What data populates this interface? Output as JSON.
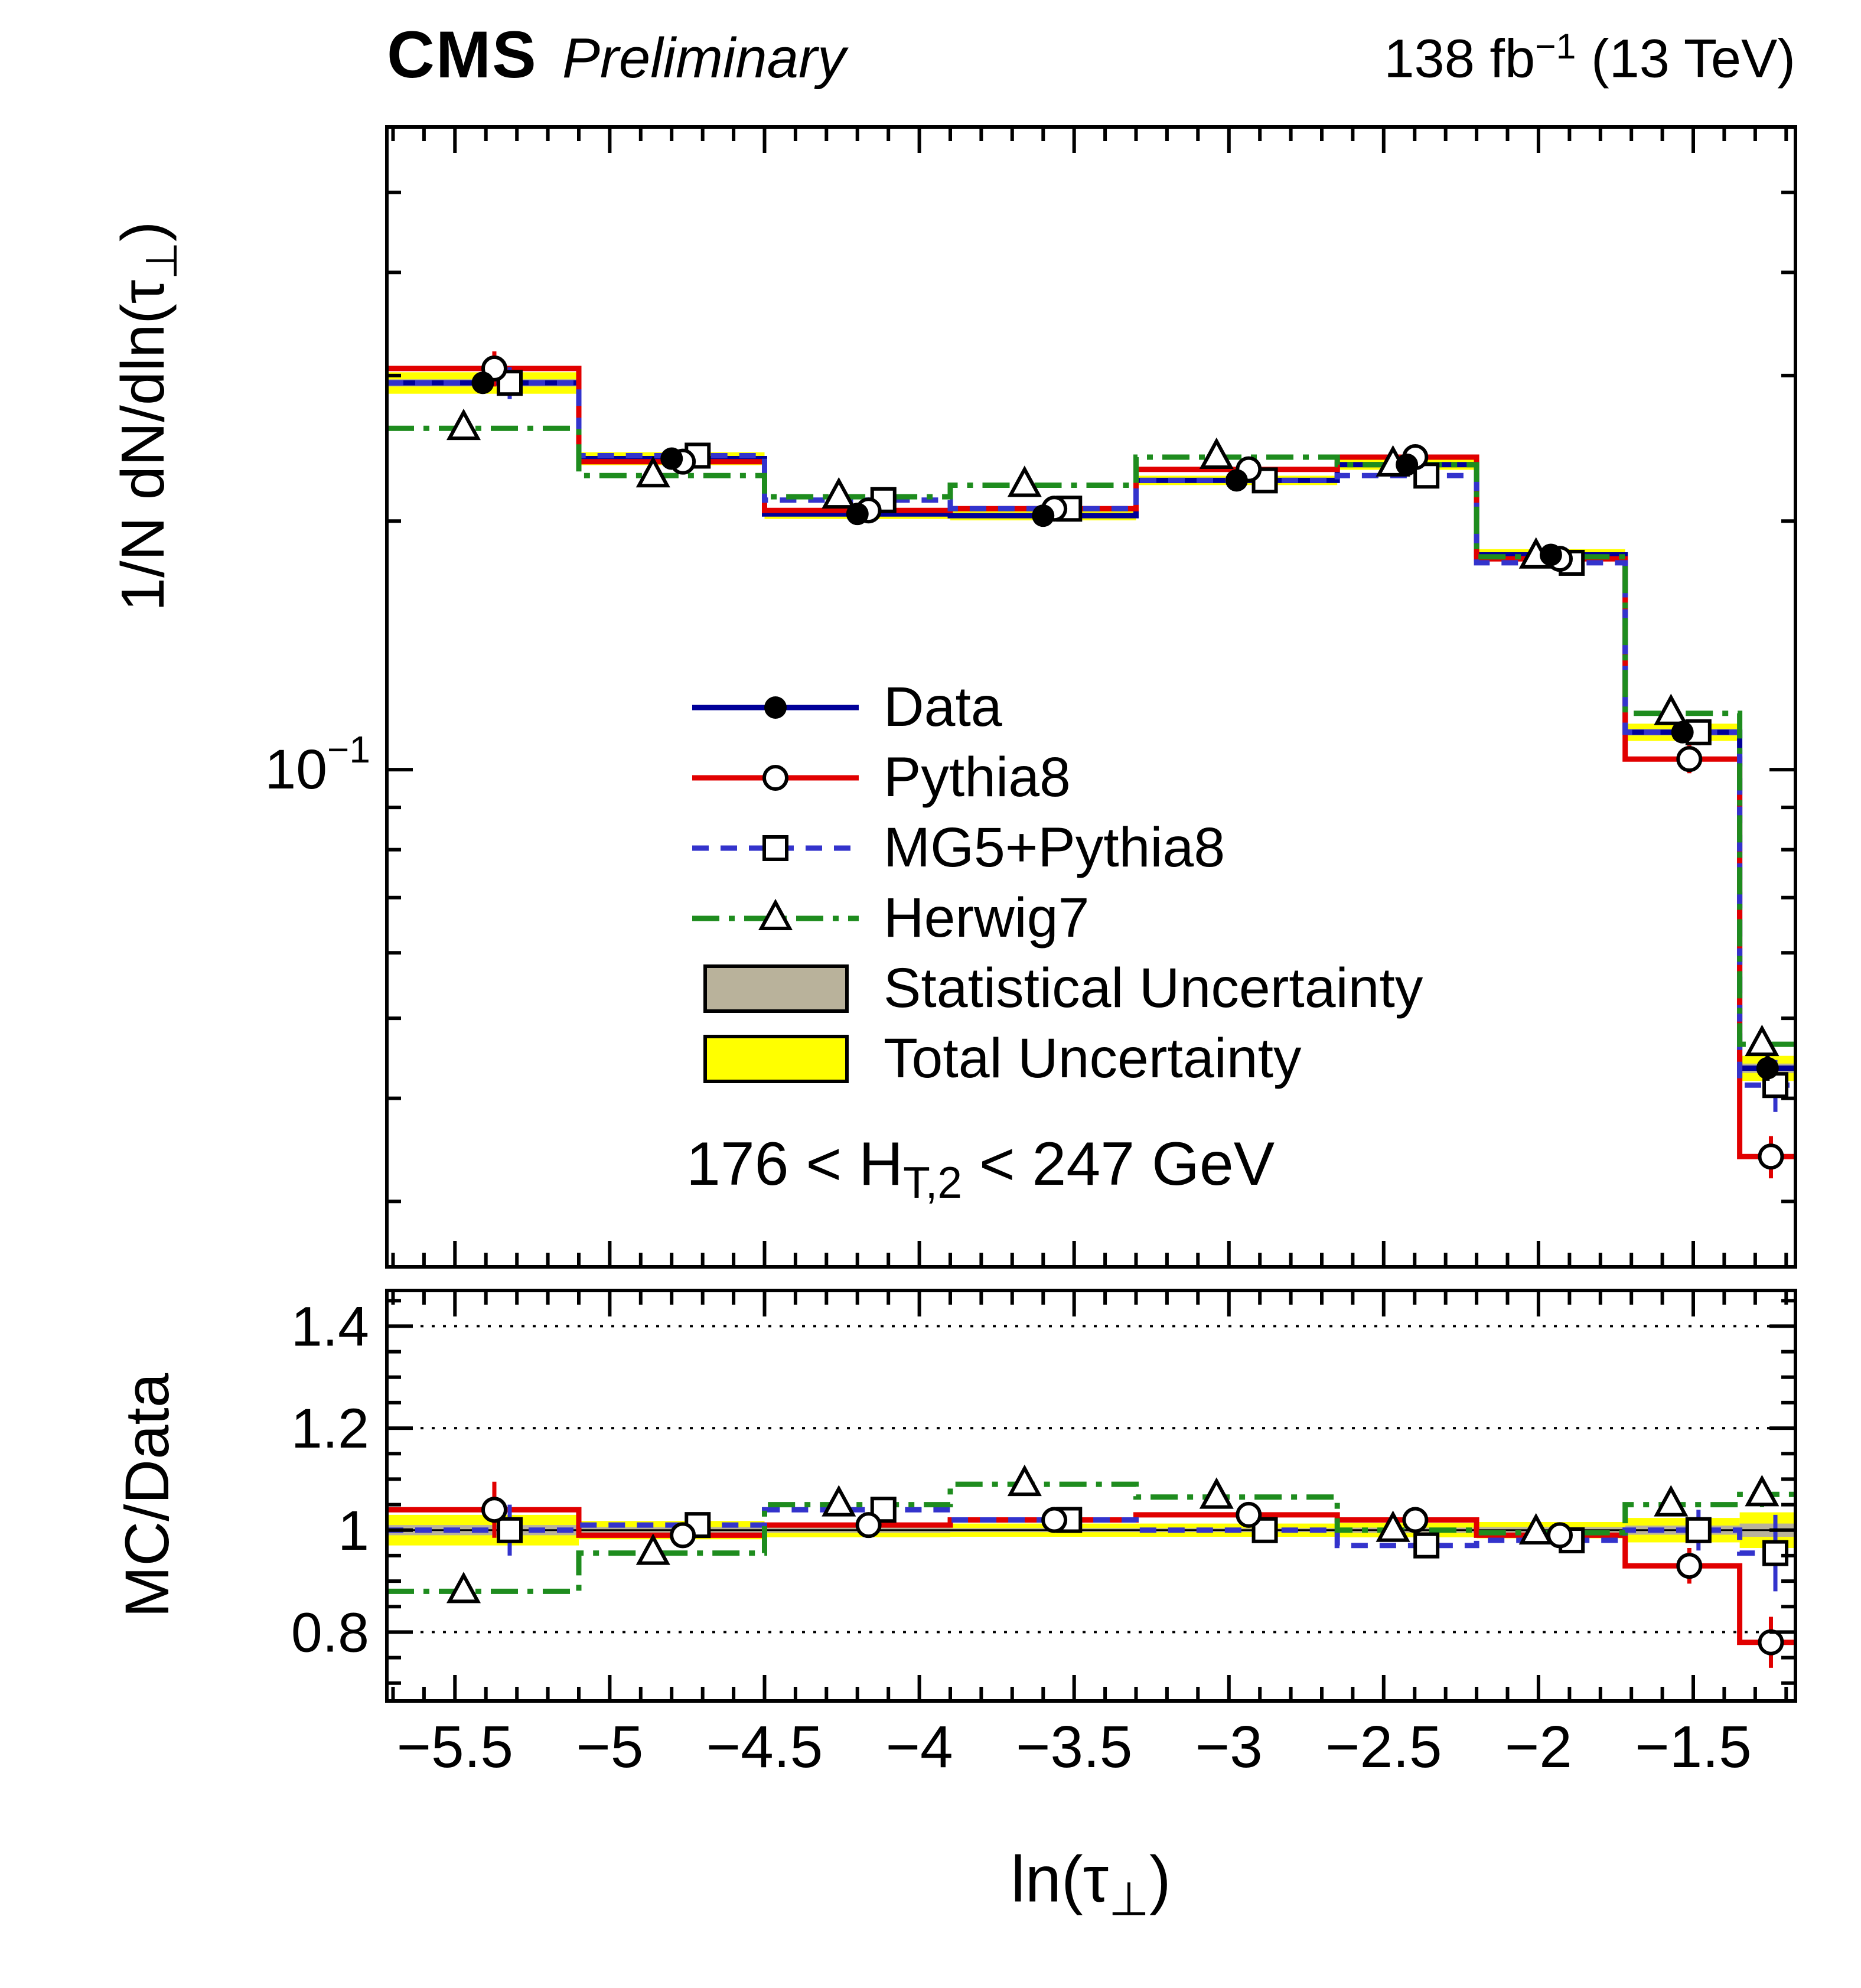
{
  "header": {
    "cms": "CMS",
    "preliminary": "Preliminary",
    "lumi_prefix": "138 fb",
    "lumi_sup": "−1",
    "lumi_suffix": " (13 TeV)"
  },
  "axes": {
    "y_top_pre": "1/N dN/dln(τ",
    "y_top_sub": "⊥",
    "y_top_suf": ")",
    "ratio_title": "MC/Data",
    "x_pre": "ln(τ",
    "x_sub": "⊥",
    "x_suf": ")"
  },
  "legend": {
    "data": "Data",
    "pythia8": "Pythia8",
    "mg5": "MG5+Pythia8",
    "herwig7": "Herwig7",
    "stat": "Statistical Uncertainty",
    "total": "Total Uncertainty"
  },
  "selection": {
    "pre": "176 < H",
    "sub": "T,2",
    "suf": " < 247 GeV"
  },
  "chart_data": {
    "type": "histogram",
    "subtype": "step-histogram-with-ratio-panel",
    "title": "CMS Preliminary 138 fb⁻¹ (13 TeV)",
    "xlabel": "ln(τ⊥)",
    "ylabel_top": "1/N dN/dln(τ⊥)",
    "ylabel_ratio": "MC/Data",
    "selection_label": "176 < H_T,2 < 247 GeV",
    "x_range": [
      -5.72,
      -1.17
    ],
    "y_range_top": [
      0.025,
      0.6
    ],
    "y_scale_top": "log",
    "y_range_ratio": [
      0.665,
      1.47
    ],
    "x_major_ticks": [
      {
        "v": -5.5,
        "label": "−5.5"
      },
      {
        "v": -5.0,
        "label": "−5"
      },
      {
        "v": -4.5,
        "label": "−4.5"
      },
      {
        "v": -4.0,
        "label": "−4"
      },
      {
        "v": -3.5,
        "label": "−3.5"
      },
      {
        "v": -3.0,
        "label": "−3"
      },
      {
        "v": -2.5,
        "label": "−2.5"
      },
      {
        "v": -2.0,
        "label": "−2"
      },
      {
        "v": -1.5,
        "label": "−1.5"
      }
    ],
    "y_top_tick_label": {
      "base": "10",
      "exp": "−1",
      "value": 0.1
    },
    "ratio_major_ticks": [
      {
        "v": 0.8,
        "label": "0.8"
      },
      {
        "v": 1.0,
        "label": "1"
      },
      {
        "v": 1.2,
        "label": "1.2"
      },
      {
        "v": 1.4,
        "label": "1.4"
      }
    ],
    "ratio_gridlines": [
      0.8,
      1.2,
      1.4
    ],
    "bin_edges": [
      -5.72,
      -5.1,
      -4.5,
      -3.9,
      -3.3,
      -2.65,
      -2.2,
      -1.72,
      -1.35,
      -1.17
    ],
    "colors": {
      "data": "#000099",
      "pythia8": "#e10000",
      "mg5": "#3333cc",
      "herwig7": "#1e8c1e",
      "stat": "#b9b29b",
      "total": "#ffff00"
    },
    "series": {
      "data": {
        "label": "Data",
        "marker": "filled-circle",
        "values": [
          0.294,
          0.238,
          0.204,
          0.203,
          0.224,
          0.234,
          0.182,
          0.111,
          0.0435
        ],
        "errors": [
          0.008,
          0.004,
          0.003,
          0.003,
          0.003,
          0.003,
          0.003,
          0.0025,
          0.0015
        ]
      },
      "pythia8": {
        "label": "Pythia8",
        "marker": "open-circle",
        "line": "solid",
        "values": [
          0.306,
          0.236,
          0.206,
          0.207,
          0.231,
          0.239,
          0.18,
          0.103,
          0.034
        ],
        "errors": [
          0.015,
          0.003,
          0.002,
          0.002,
          0.002,
          0.002,
          0.002,
          0.004,
          0.002
        ],
        "ratio": [
          1.04,
          0.99,
          1.01,
          1.02,
          1.03,
          1.02,
          0.99,
          0.93,
          0.78
        ],
        "ratio_errors": [
          0.055,
          0.012,
          0.008,
          0.008,
          0.008,
          0.008,
          0.012,
          0.035,
          0.05
        ]
      },
      "mg5": {
        "label": "MG5+Pythia8",
        "marker": "open-square",
        "line": "dashed",
        "values": [
          0.294,
          0.24,
          0.212,
          0.207,
          0.224,
          0.227,
          0.178,
          0.111,
          0.0415
        ],
        "errors": [
          0.013,
          0.003,
          0.002,
          0.002,
          0.002,
          0.002,
          0.002,
          0.004,
          0.003
        ],
        "ratio": [
          1.0,
          1.01,
          1.04,
          1.02,
          1.0,
          0.97,
          0.98,
          1.0,
          0.955
        ],
        "ratio_errors": [
          0.05,
          0.012,
          0.008,
          0.008,
          0.008,
          0.008,
          0.012,
          0.04,
          0.075
        ]
      },
      "herwig7": {
        "label": "Herwig7",
        "marker": "open-triangle",
        "line": "dash-dot",
        "values": [
          0.259,
          0.227,
          0.214,
          0.221,
          0.239,
          0.234,
          0.181,
          0.117,
          0.0465
        ],
        "errors": [
          0.004,
          0.002,
          0.0015,
          0.0015,
          0.0015,
          0.0015,
          0.0015,
          0.002,
          0.0012
        ],
        "ratio": [
          0.88,
          0.955,
          1.05,
          1.09,
          1.065,
          1.0,
          0.995,
          1.05,
          1.07
        ],
        "ratio_errors": [
          0.012,
          0.008,
          0.006,
          0.006,
          0.006,
          0.006,
          0.008,
          0.02,
          0.025
        ]
      }
    },
    "uncertainty": {
      "stat_frac": [
        0.01,
        0.006,
        0.005,
        0.004,
        0.004,
        0.005,
        0.006,
        0.009,
        0.013
      ],
      "total_frac": [
        0.03,
        0.018,
        0.014,
        0.013,
        0.013,
        0.014,
        0.016,
        0.024,
        0.035
      ]
    }
  }
}
